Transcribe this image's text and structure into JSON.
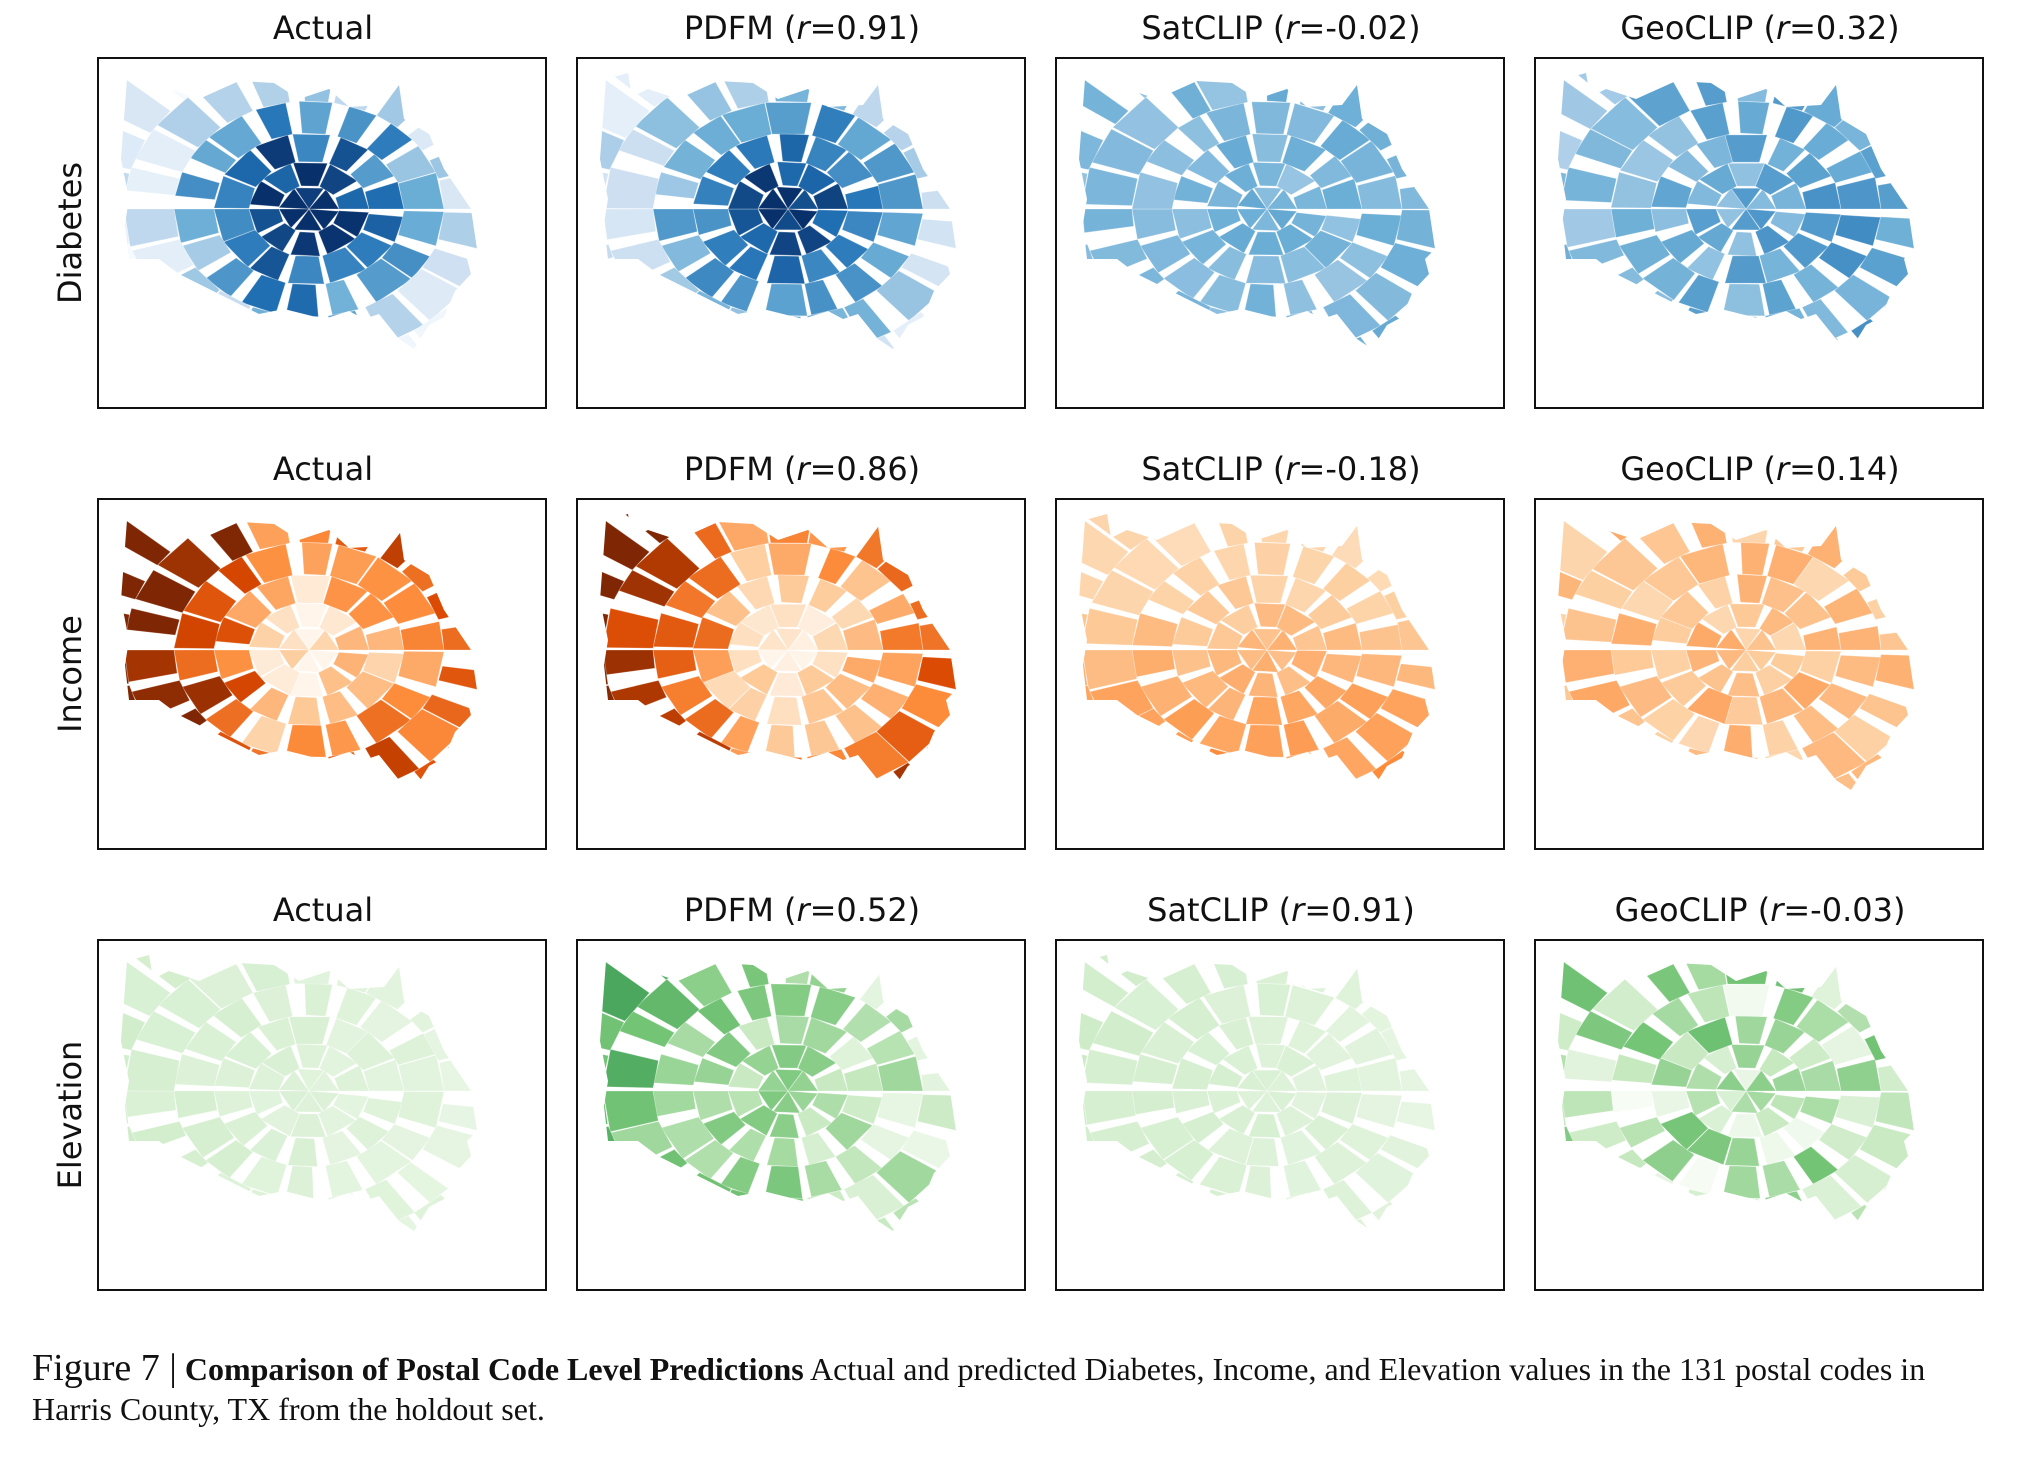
{
  "rows": [
    {
      "label": "Diabetes",
      "colormap": "blues",
      "panels": [
        {
          "title": "Actual",
          "r": null
        },
        {
          "title": "PDFM",
          "r": "0.91"
        },
        {
          "title": "SatCLIP",
          "r": "-0.02"
        },
        {
          "title": "GeoCLIP",
          "r": "0.32"
        }
      ]
    },
    {
      "label": "Income",
      "colormap": "oranges",
      "panels": [
        {
          "title": "Actual",
          "r": null
        },
        {
          "title": "PDFM",
          "r": "0.86"
        },
        {
          "title": "SatCLIP",
          "r": "-0.18"
        },
        {
          "title": "GeoCLIP",
          "r": "0.14"
        }
      ]
    },
    {
      "label": "Elevation",
      "colormap": "greens",
      "panels": [
        {
          "title": "Actual",
          "r": null
        },
        {
          "title": "PDFM",
          "r": "0.52"
        },
        {
          "title": "SatCLIP",
          "r": "0.91"
        },
        {
          "title": "GeoCLIP",
          "r": "-0.03"
        }
      ]
    }
  ],
  "caption": {
    "figure_label": "Figure 7 |",
    "bold_title": "Comparison of Postal Code Level Predictions",
    "text": " Actual and predicted Diabetes, Income, and Elevation values in the 131 postal codes in Harris County, TX from the holdout set."
  },
  "colors": {
    "blues": [
      "#f7fbff",
      "#c6dbef",
      "#6baed6",
      "#2171b5",
      "#08306b"
    ],
    "oranges": [
      "#fff5eb",
      "#fdd0a2",
      "#fd8d3c",
      "#d94801",
      "#7f2704"
    ],
    "greens": [
      "#f7fcf5",
      "#c7e9c0",
      "#74c476",
      "#238b45",
      "#00441b"
    ]
  }
}
